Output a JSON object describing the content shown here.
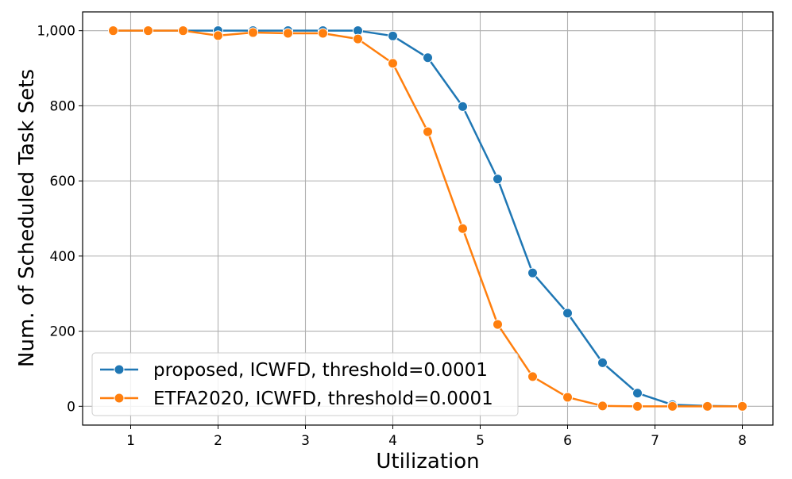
{
  "chart_data": {
    "type": "line",
    "title": "",
    "xlabel": "Utilization",
    "ylabel": "Num. of Scheduled Task Sets",
    "xlim": [
      0.45,
      8.35
    ],
    "ylim": [
      -50,
      1050
    ],
    "xticks": [
      1,
      2,
      3,
      4,
      5,
      6,
      7,
      8
    ],
    "yticks": [
      0,
      200,
      400,
      600,
      800,
      1000
    ],
    "ytick_labels": [
      "0",
      "200",
      "400",
      "600",
      "800",
      "1,000"
    ],
    "grid": true,
    "legend_position": "lower-left",
    "x": [
      0.8,
      1.2,
      1.6,
      2.0,
      2.4,
      2.8,
      3.2,
      3.6,
      4.0,
      4.4,
      4.8,
      5.2,
      5.6,
      6.0,
      6.4,
      6.8,
      7.2,
      7.6,
      8.0
    ],
    "series": [
      {
        "name": "proposed, ICWFD, threshold=0.0001",
        "color": "#1f77b4",
        "values": [
          1000,
          1000,
          1000,
          1000,
          1000,
          1000,
          1000,
          1000,
          986,
          928,
          798,
          605,
          355,
          248,
          116,
          35,
          4,
          1,
          0
        ]
      },
      {
        "name": "ETFA2020, ICWFD, threshold=0.0001",
        "color": "#ff7f0e",
        "values": [
          1000,
          1000,
          1000,
          987,
          995,
          993,
          993,
          978,
          913,
          731,
          473,
          218,
          79,
          24,
          1,
          0,
          0,
          0,
          0
        ]
      }
    ]
  }
}
